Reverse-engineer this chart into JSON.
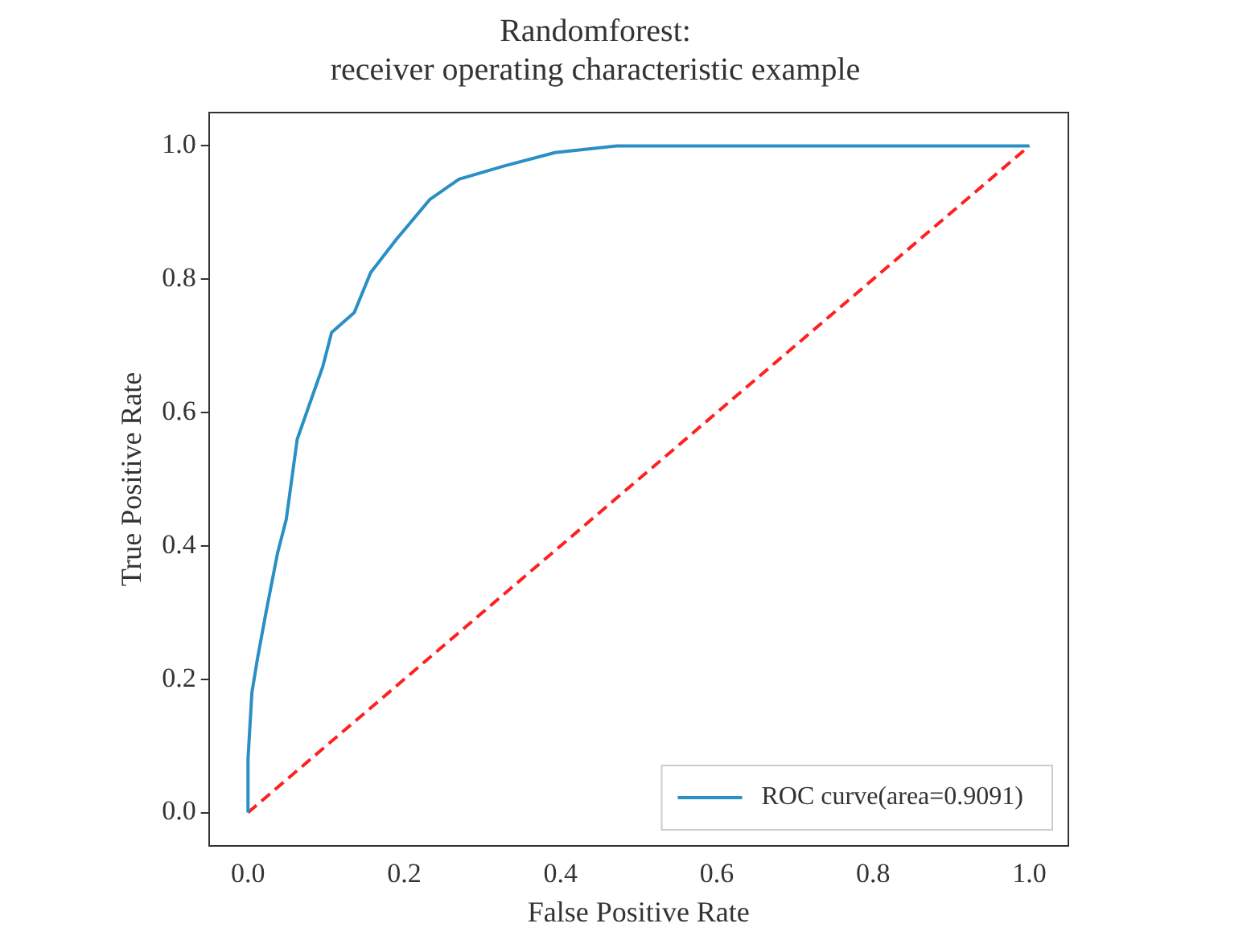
{
  "chart_data": {
    "type": "line",
    "title": "Randomforest:\nreceiver operating characteristic example",
    "xlabel": "False Positive Rate",
    "ylabel": "True Positive Rate",
    "xlim": [
      -0.05,
      1.05
    ],
    "ylim": [
      -0.05,
      1.05
    ],
    "xticks": [
      {
        "value": 0,
        "label": "0.0"
      },
      {
        "value": 0.2,
        "label": "0.2"
      },
      {
        "value": 0.4,
        "label": "0.4"
      },
      {
        "value": 0.6,
        "label": "0.6"
      },
      {
        "value": 0.8,
        "label": "0.8"
      },
      {
        "value": 1,
        "label": "1.0"
      }
    ],
    "yticks": [
      {
        "value": 0,
        "label": "0.0"
      },
      {
        "value": 0.2,
        "label": "0.2"
      },
      {
        "value": 0.4,
        "label": "0.4"
      },
      {
        "value": 0.6,
        "label": "0.6"
      },
      {
        "value": 0.8,
        "label": "0.8"
      },
      {
        "value": 1,
        "label": "1.0"
      }
    ],
    "grid": false,
    "legend": "bottom right",
    "marker": "none",
    "series": [
      {
        "name": "ROC curve(area=0.9091)",
        "color": "#2a8fc4",
        "line_style": "solid",
        "x": [
          0,
          0,
          0.005,
          0.012,
          0.023,
          0.038,
          0.049,
          0.063,
          0.081,
          0.096,
          0.107,
          0.136,
          0.157,
          0.19,
          0.233,
          0.27,
          0.328,
          0.393,
          0.472,
          1
        ],
        "values": [
          0,
          0.08,
          0.18,
          0.23,
          0.3,
          0.39,
          0.44,
          0.56,
          0.62,
          0.67,
          0.72,
          0.75,
          0.81,
          0.86,
          0.92,
          0.95,
          0.97,
          0.99,
          1,
          1
        ]
      },
      {
        "color": "#ff2020",
        "line_style": "dashed",
        "x": [
          0,
          1
        ],
        "values": [
          0,
          1
        ]
      }
    ]
  }
}
